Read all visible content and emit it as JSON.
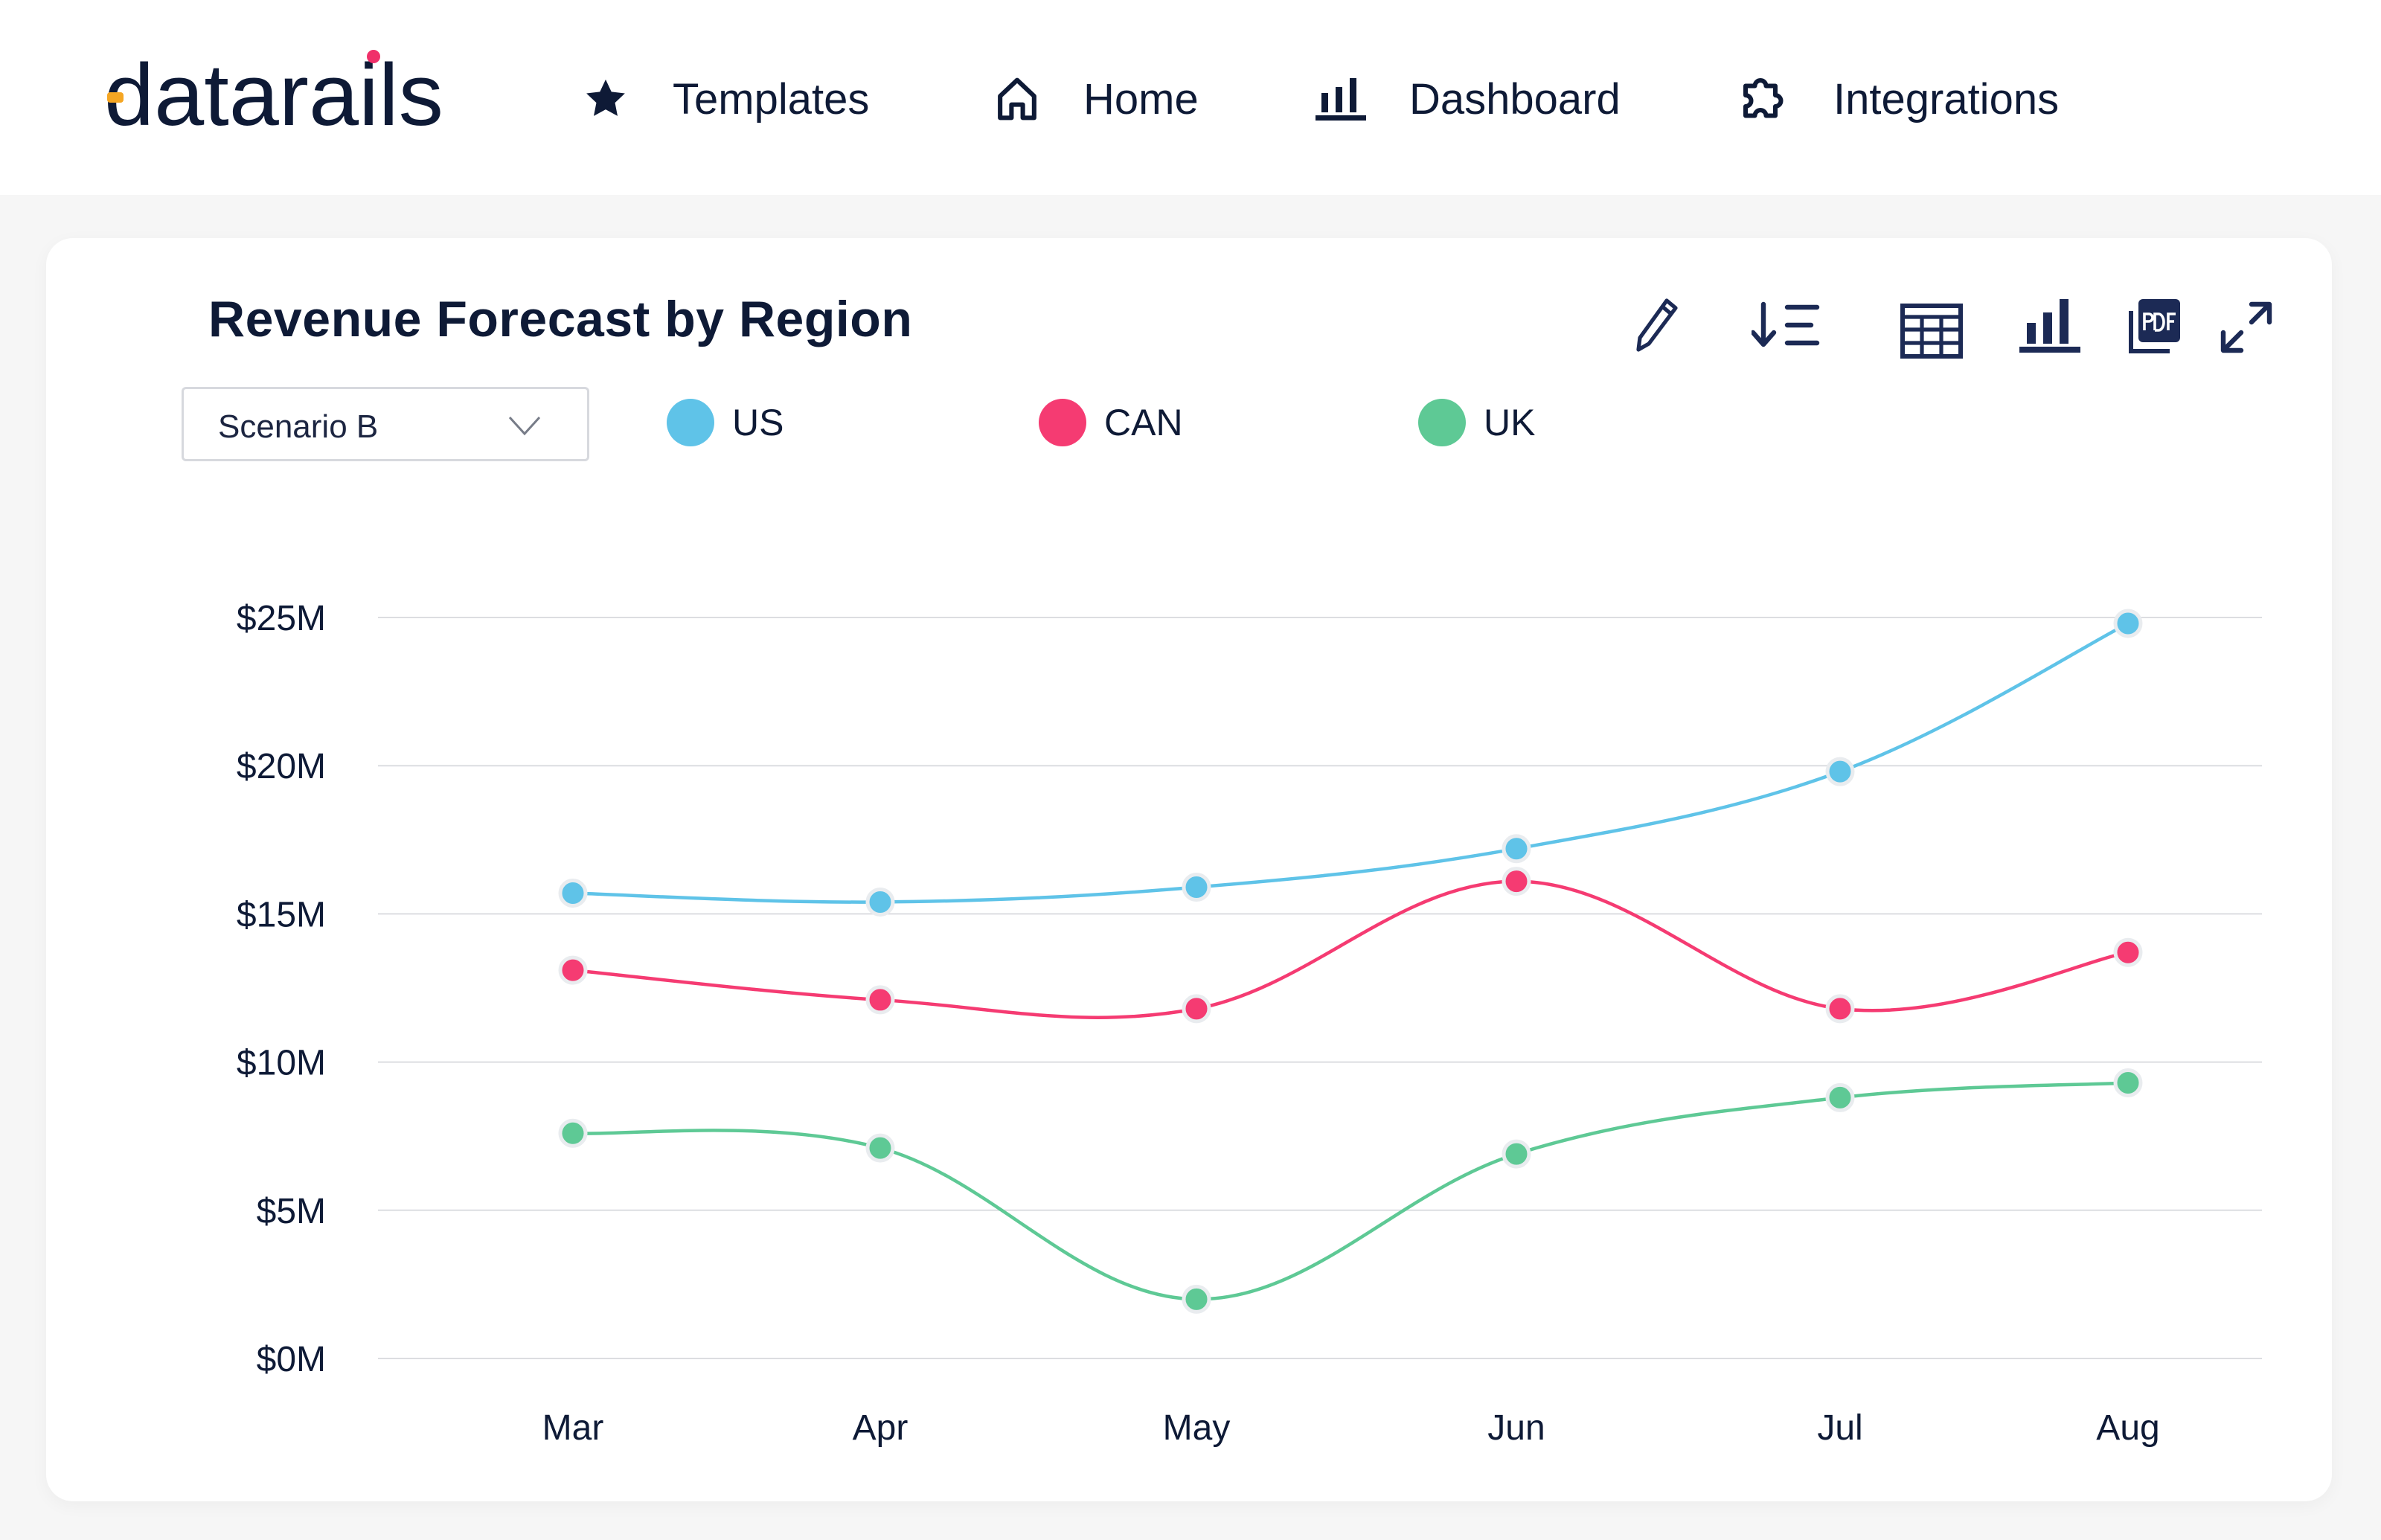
{
  "brand": {
    "name": "datarails",
    "accent": "#f5a623",
    "dot": "#f0306a",
    "text_color": "#0e1a36"
  },
  "nav": {
    "items": [
      {
        "label": "Templates",
        "icon": "star-icon"
      },
      {
        "label": "Home",
        "icon": "home-icon"
      },
      {
        "label": "Dashboard",
        "icon": "bar-chart-icon"
      },
      {
        "label": "Integrations",
        "icon": "puzzle-icon"
      }
    ]
  },
  "card": {
    "title": "Revenue Forecast by Region",
    "toolbar": [
      "pencil-icon",
      "sort-icon",
      "table-icon",
      "bar-chart-icon",
      "pdf-icon",
      "expand-icon"
    ],
    "scenario": {
      "selected": "Scenario B"
    }
  },
  "chart_data": {
    "type": "line",
    "title": "Revenue Forecast by Region",
    "xlabel": "",
    "ylabel": "",
    "categories": [
      "Mar",
      "Apr",
      "May",
      "Jun",
      "Jul",
      "Aug"
    ],
    "ylim": [
      0,
      25
    ],
    "yticks": [
      0,
      5,
      10,
      15,
      20,
      25
    ],
    "ytick_labels": [
      "$0M",
      "$5M",
      "$10M",
      "$15M",
      "$20M",
      "$25M"
    ],
    "grid": true,
    "legend": "top",
    "smooth": true,
    "series": [
      {
        "name": "US",
        "color": "#5fc3e8",
        "values": [
          15.7,
          15.4,
          15.9,
          17.2,
          19.8,
          24.8
        ]
      },
      {
        "name": "CAN",
        "color": "#f53b72",
        "values": [
          13.1,
          12.1,
          11.8,
          16.1,
          11.8,
          13.7
        ]
      },
      {
        "name": "UK",
        "color": "#5ec995",
        "values": [
          7.6,
          7.1,
          2.0,
          6.9,
          8.8,
          9.3
        ]
      }
    ]
  }
}
